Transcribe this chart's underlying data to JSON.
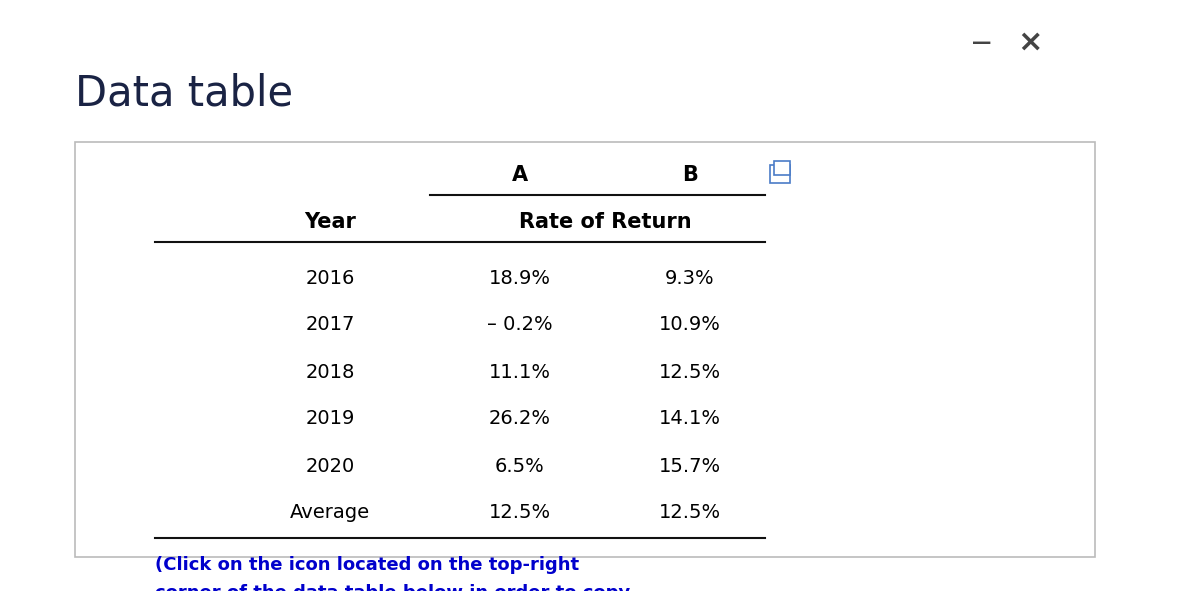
{
  "title": "Data table",
  "title_color": "#1a2344",
  "title_fontsize": 30,
  "title_fontweight": "normal",
  "background_color": "#ffffff",
  "box_color": "#ffffff",
  "box_border_color": "#bbbbbb",
  "col_headers": [
    "A",
    "B"
  ],
  "col_subheader": "Rate of Return",
  "row_header": "Year",
  "rows": [
    "2016",
    "2017",
    "2018",
    "2019",
    "2020",
    "Average"
  ],
  "col_A": [
    "18.9%",
    "– 0.2%",
    "11.1%",
    "26.2%",
    "6.5%",
    "12.5%"
  ],
  "col_B": [
    "9.3%",
    "10.9%",
    "12.5%",
    "14.1%",
    "15.7%",
    "12.5%"
  ],
  "note_color": "#0000cc",
  "note_text": "(Click on the icon located on the top-right\ncorner of the data table below in order to copy\nits contents into a spreadsheet.)",
  "header_fontsize": 14,
  "data_fontsize": 14,
  "minimize_color": "#444444",
  "close_color": "#444444",
  "icon_blue": "#4a7cc7",
  "line_color": "#111111",
  "note_fontsize": 13
}
